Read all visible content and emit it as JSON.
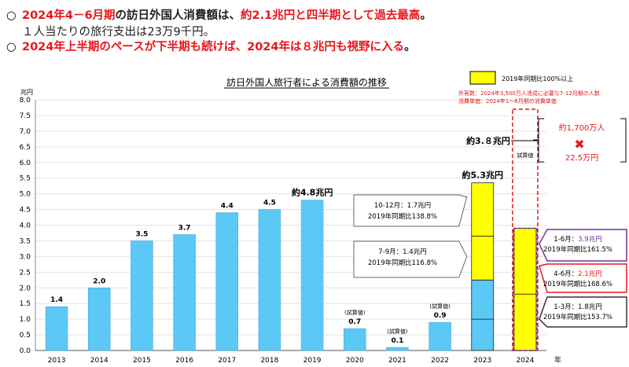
{
  "headline": {
    "bullet": "○",
    "line1_red1": "2024年4－6月期",
    "line1_dark1": "の訪日外国人消費額は、",
    "line1_red2": "約2.1兆円と四半期として過去最高",
    "line1_dark2": "。",
    "line2": "１人当たりの旅行支出は23万9千円。",
    "line3": "2024年上半期のペースが下半期も続けば、2024年は８兆円も視野に入る",
    "line3_end": "。"
  },
  "chart_data": {
    "type": "bar",
    "title": "訪日外国人旅行者による消費額の推移",
    "ylabel": "兆円",
    "xunit": "年",
    "ylim": [
      0,
      8
    ],
    "yticks": [
      "0.0",
      "0.5",
      "1.0",
      "1.5",
      "2.0",
      "2.5",
      "3.0",
      "3.5",
      "4.0",
      "4.5",
      "5.0",
      "5.5",
      "6.0",
      "6.5",
      "7.0",
      "7.5",
      "8.0"
    ],
    "categories": [
      "2013",
      "2014",
      "2015",
      "2016",
      "2017",
      "2018",
      "2019",
      "2020",
      "2021",
      "2022",
      "2023",
      "2024"
    ],
    "values": [
      1.4,
      2.0,
      3.5,
      3.7,
      4.4,
      4.5,
      4.8,
      0.7,
      0.1,
      0.9,
      null,
      null
    ],
    "labels": [
      "1.4",
      "2.0",
      "3.5",
      "3.7",
      "4.4",
      "4.5",
      "約4.8兆円",
      "0.7",
      "0.1",
      "0.9",
      "約5.3兆円",
      "約3.８兆円"
    ],
    "estimate_note": "(試算値)",
    "stack_2023": [
      {
        "value": 1.0,
        "highlight": false
      },
      {
        "value": 1.25,
        "highlight": false
      },
      {
        "value": 1.4,
        "highlight": true
      },
      {
        "value": 1.7,
        "highlight": true
      }
    ],
    "stack_2024": [
      {
        "value": 1.8,
        "highlight": true
      },
      {
        "value": 2.1,
        "highlight": true
      }
    ],
    "projection_2024_top": 7.7,
    "projection_note": "試算値",
    "colors": {
      "bar": "#5bc8f5",
      "highlight": "#ffff00",
      "red": "#e8161b",
      "purple": "#7030a0"
    },
    "legend": {
      "text": "2019年同期比100%以上",
      "note1": "外客数：2024年3,500万人達成に必要な7-12月期の人数",
      "note2": "消費単価：2024年1～6月期の消費単価"
    },
    "formula": {
      "top": "約1,700万人",
      "bottom": "22.5万円"
    },
    "callouts_2023": [
      {
        "line1": "10-12月：1.7兆円",
        "line2": "2019年同期比138.8%"
      },
      {
        "line1": "7-9月：1.4兆円",
        "line2": "2019年同期比116.8%"
      }
    ],
    "callouts_2024": [
      {
        "line1_a": "1-6月：",
        "line1_b": "3.9兆円",
        "line2": "2019年同期比161.5%",
        "color": "#7030a0"
      },
      {
        "line1_a": "4-6月：",
        "line1_b": "2.1兆円",
        "line2": "2019年同期比168.6%",
        "color": "#e8161b"
      },
      {
        "line1_a": "1-3月：1.8兆円",
        "line1_b": "",
        "line2": "2019年同期比153.7%",
        "color": "#333333"
      }
    ]
  }
}
